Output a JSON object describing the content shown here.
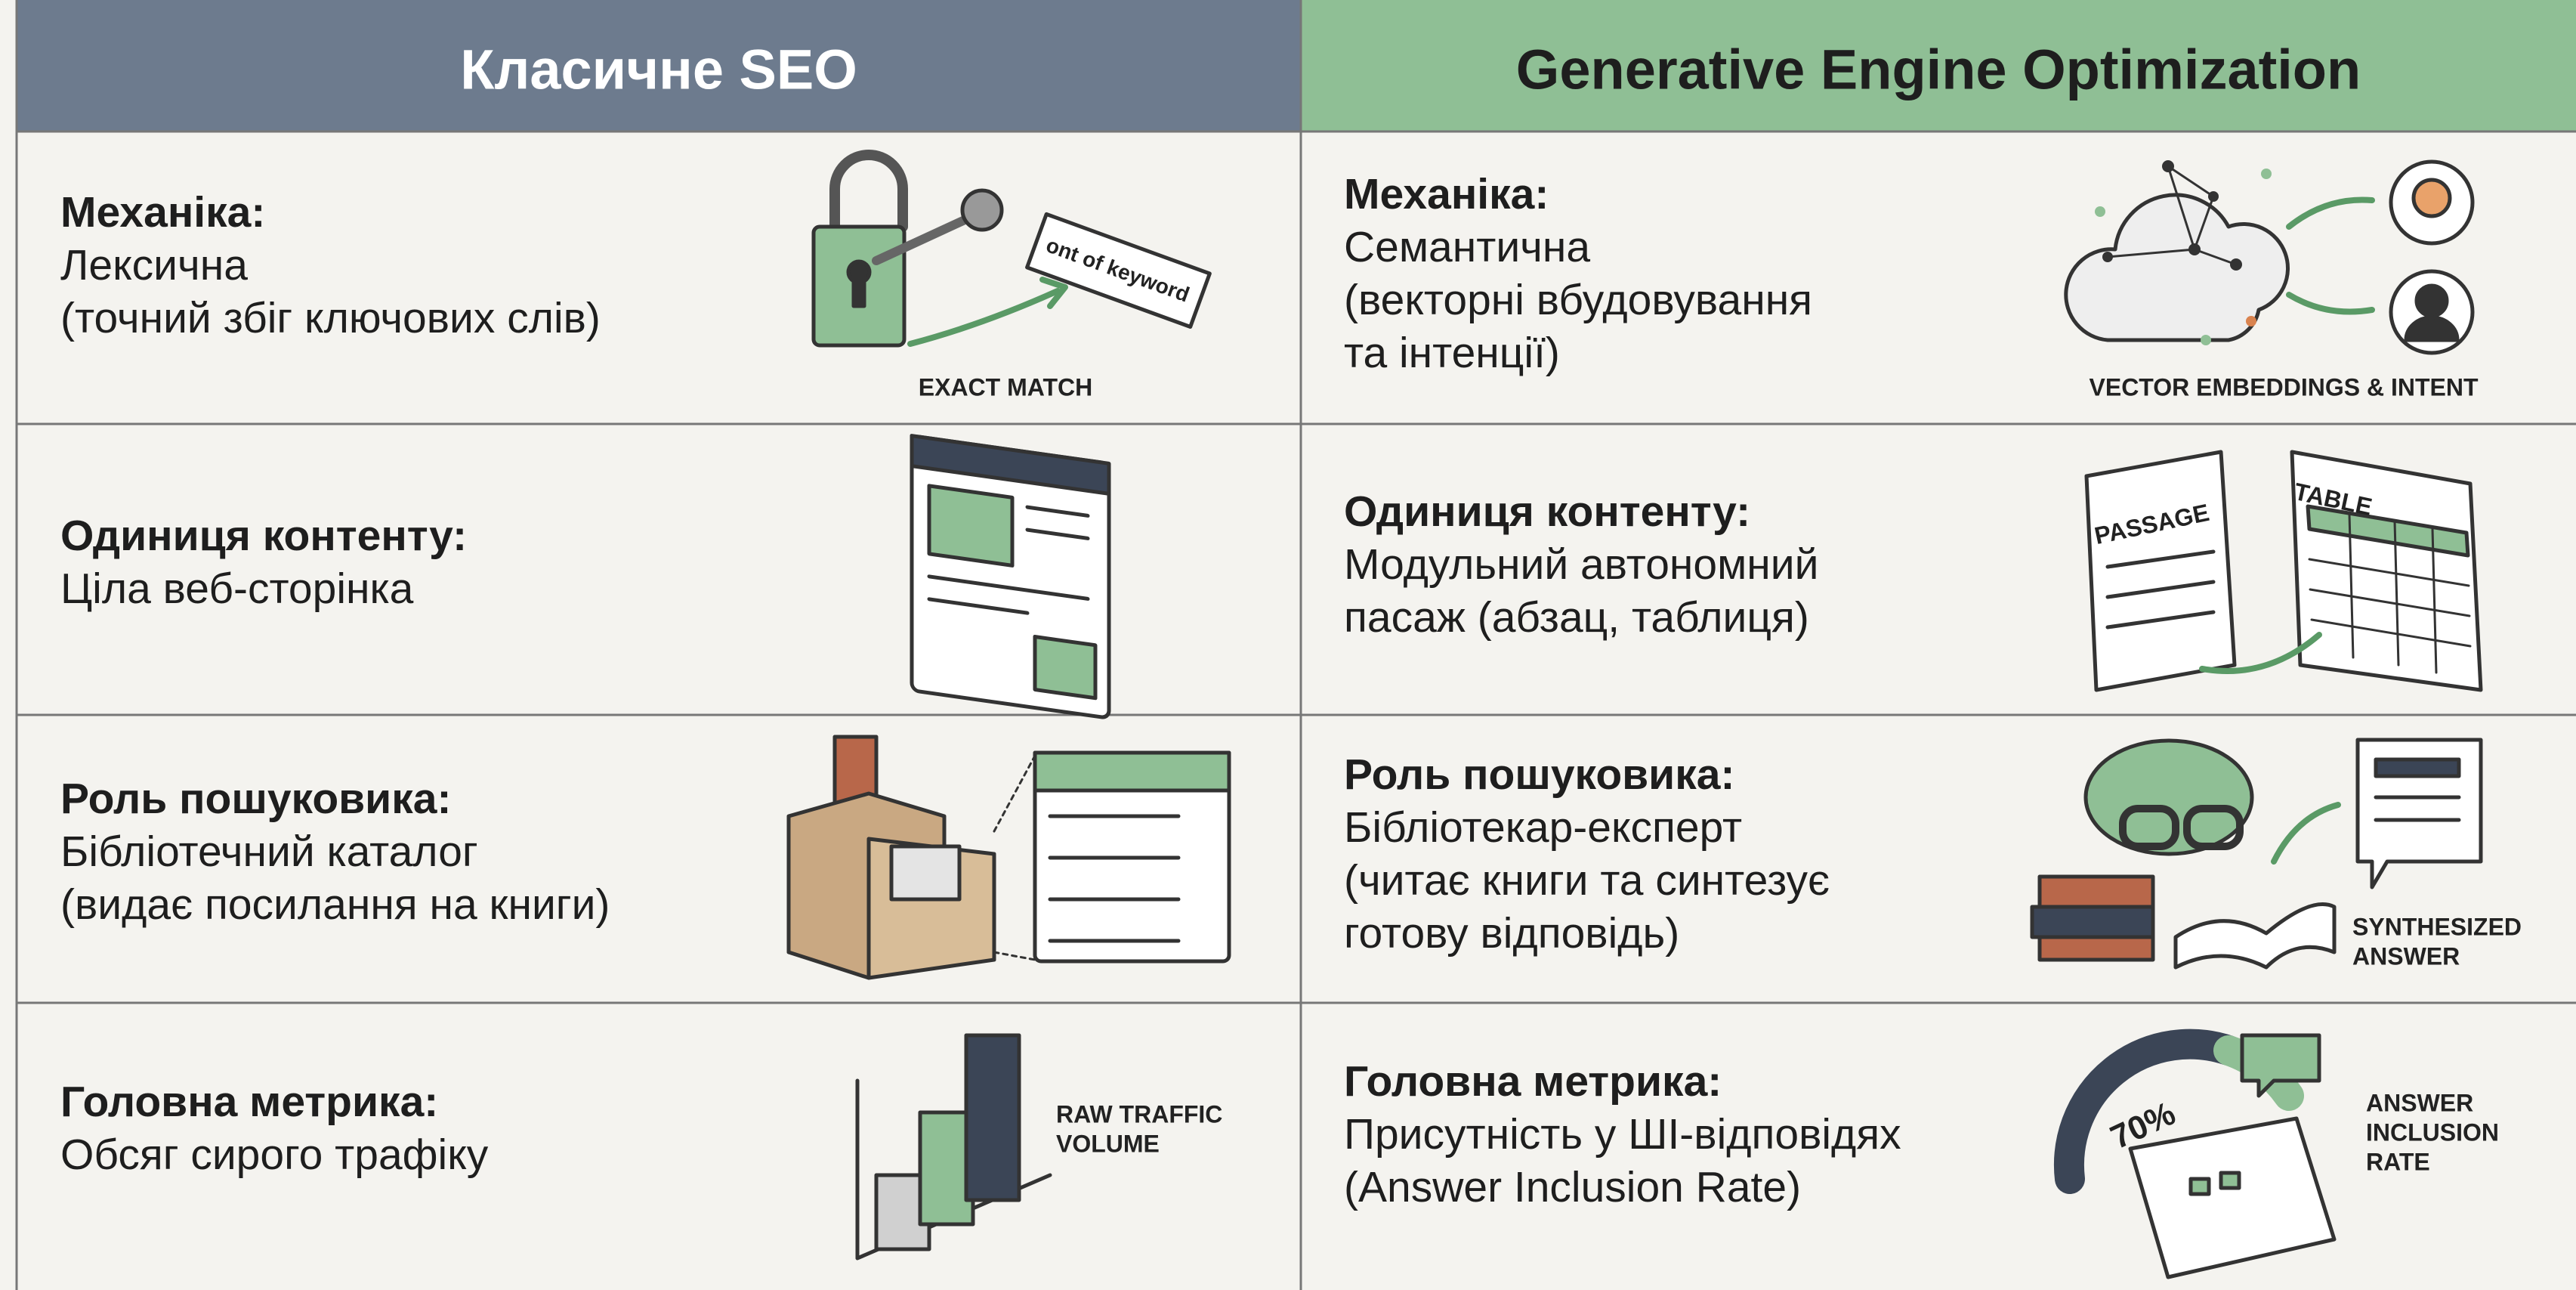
{
  "header": {
    "left": "Класичне SEO",
    "right": "Generative Engine Optimization"
  },
  "rows": [
    {
      "left": {
        "label": "Механіка:",
        "lines": [
          "Лексична",
          "(точний збіг ключових слів)"
        ],
        "icon_text": [
          "ont of keyword",
          "EXACT MATCH"
        ]
      },
      "right": {
        "label": "Механіка:",
        "lines": [
          "Семантична",
          "(векторні вбудовування",
          "та інтенції)"
        ],
        "icon_text": [
          "VECTOR EMBEDDINGS & INTENT"
        ]
      }
    },
    {
      "left": {
        "label": "Одиниця контенту:",
        "lines": [
          "Ціла веб-сторінка"
        ]
      },
      "right": {
        "label": "Одиниця контенту:",
        "lines": [
          "Модульний автономний",
          "пасаж (абзац, таблиця)"
        ],
        "icon_text": [
          "PASSAGE",
          "TABLE"
        ]
      }
    },
    {
      "left": {
        "label": "Роль пошуковика:",
        "lines": [
          "Бібліотечний каталог",
          "(видає посилання на книги)"
        ]
      },
      "right": {
        "label": "Роль пошуковика:",
        "lines": [
          "Бібліотекар-експерт",
          "(читає книги та синтезує",
          "готову відповідь)"
        ],
        "icon_text": [
          "SYNTHESIZED",
          "ANSWER"
        ]
      }
    },
    {
      "left": {
        "label": "Головна метрика:",
        "lines": [
          "Обсяг сирого трафіку"
        ],
        "icon_text": [
          "RAW TRAFFIC",
          "VOLUME"
        ]
      },
      "right": {
        "label": "Головна метрика:",
        "lines": [
          "Присутність у ШІ-відповідях",
          "(Answer Inclusion Rate)"
        ],
        "icon_text": [
          "70%",
          "ANSWER",
          "INCLUSION",
          "RATE"
        ]
      }
    }
  ]
}
